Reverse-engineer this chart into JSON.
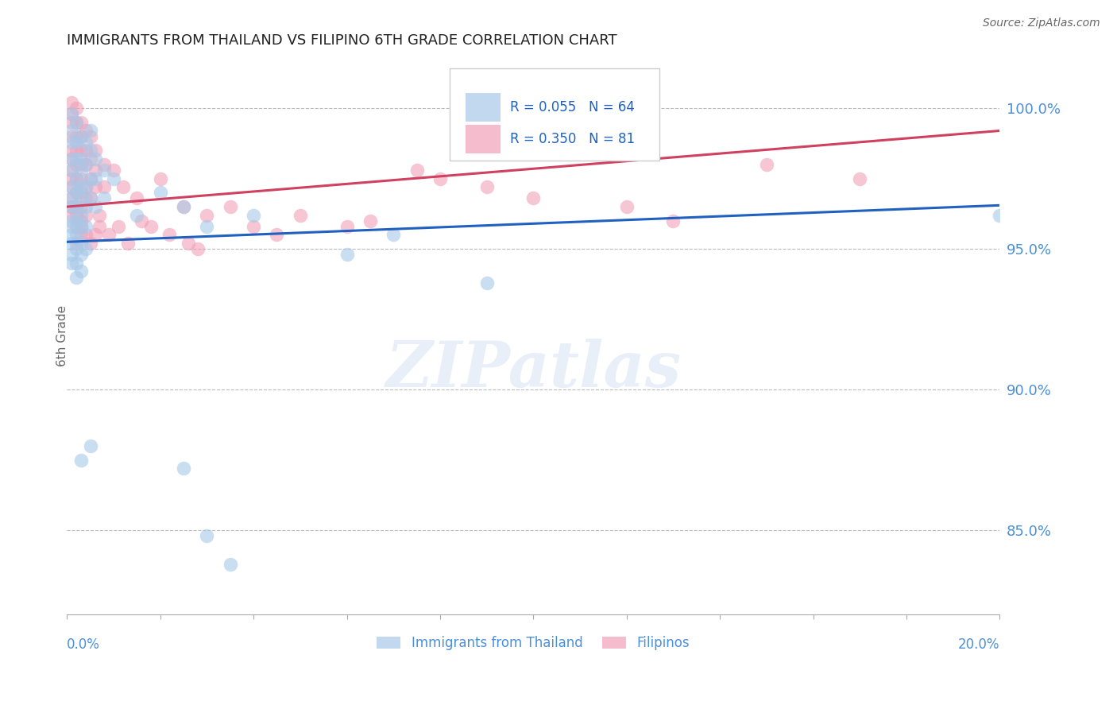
{
  "title": "IMMIGRANTS FROM THAILAND VS FILIPINO 6TH GRADE CORRELATION CHART",
  "source": "Source: ZipAtlas.com",
  "legend_blue_label": "Immigrants from Thailand",
  "legend_pink_label": "Filipinos",
  "R_blue": 0.055,
  "N_blue": 64,
  "R_pink": 0.35,
  "N_pink": 81,
  "blue_color": "#A8C8E8",
  "pink_color": "#F0A0B8",
  "line_blue_color": "#2060C0",
  "line_pink_color": "#D04060",
  "ylabel": "6th Grade",
  "ylabel_right_ticks": [
    100.0,
    95.0,
    90.0,
    85.0
  ],
  "xmin": 0.0,
  "xmax": 0.2,
  "ymin": 82.0,
  "ymax": 101.8,
  "blue_line_y0": 95.25,
  "blue_line_y1": 96.55,
  "pink_line_y0": 96.5,
  "pink_line_y1": 99.2,
  "blue_points": [
    [
      0.001,
      99.8
    ],
    [
      0.001,
      99.2
    ],
    [
      0.001,
      98.8
    ],
    [
      0.001,
      98.2
    ],
    [
      0.001,
      97.8
    ],
    [
      0.001,
      97.2
    ],
    [
      0.001,
      96.8
    ],
    [
      0.001,
      96.5
    ],
    [
      0.001,
      96.0
    ],
    [
      0.001,
      95.8
    ],
    [
      0.001,
      95.5
    ],
    [
      0.001,
      95.2
    ],
    [
      0.001,
      94.8
    ],
    [
      0.001,
      94.5
    ],
    [
      0.002,
      99.5
    ],
    [
      0.002,
      98.8
    ],
    [
      0.002,
      98.2
    ],
    [
      0.002,
      97.5
    ],
    [
      0.002,
      97.0
    ],
    [
      0.002,
      96.5
    ],
    [
      0.002,
      96.0
    ],
    [
      0.002,
      95.5
    ],
    [
      0.002,
      95.0
    ],
    [
      0.002,
      94.5
    ],
    [
      0.002,
      94.0
    ],
    [
      0.003,
      99.0
    ],
    [
      0.003,
      98.2
    ],
    [
      0.003,
      97.8
    ],
    [
      0.003,
      97.2
    ],
    [
      0.003,
      96.8
    ],
    [
      0.003,
      96.2
    ],
    [
      0.003,
      95.8
    ],
    [
      0.003,
      95.2
    ],
    [
      0.003,
      94.8
    ],
    [
      0.003,
      94.2
    ],
    [
      0.004,
      98.8
    ],
    [
      0.004,
      98.0
    ],
    [
      0.004,
      97.2
    ],
    [
      0.004,
      96.5
    ],
    [
      0.004,
      95.8
    ],
    [
      0.004,
      95.0
    ],
    [
      0.005,
      99.2
    ],
    [
      0.005,
      98.5
    ],
    [
      0.005,
      97.5
    ],
    [
      0.005,
      96.8
    ],
    [
      0.006,
      98.2
    ],
    [
      0.006,
      97.5
    ],
    [
      0.006,
      96.5
    ],
    [
      0.008,
      97.8
    ],
    [
      0.008,
      96.8
    ],
    [
      0.01,
      97.5
    ],
    [
      0.015,
      96.2
    ],
    [
      0.02,
      97.0
    ],
    [
      0.025,
      96.5
    ],
    [
      0.03,
      95.8
    ],
    [
      0.04,
      96.2
    ],
    [
      0.06,
      94.8
    ],
    [
      0.07,
      95.5
    ],
    [
      0.09,
      93.8
    ],
    [
      0.003,
      87.5
    ],
    [
      0.005,
      88.0
    ],
    [
      0.025,
      87.2
    ],
    [
      0.03,
      84.8
    ],
    [
      0.035,
      83.8
    ],
    [
      0.2,
      96.2
    ]
  ],
  "pink_points": [
    [
      0.001,
      100.2
    ],
    [
      0.001,
      99.8
    ],
    [
      0.001,
      99.5
    ],
    [
      0.001,
      99.0
    ],
    [
      0.001,
      98.5
    ],
    [
      0.001,
      98.2
    ],
    [
      0.001,
      97.8
    ],
    [
      0.001,
      97.5
    ],
    [
      0.001,
      97.2
    ],
    [
      0.001,
      96.8
    ],
    [
      0.001,
      96.5
    ],
    [
      0.001,
      96.2
    ],
    [
      0.002,
      100.0
    ],
    [
      0.002,
      99.5
    ],
    [
      0.002,
      99.0
    ],
    [
      0.002,
      98.5
    ],
    [
      0.002,
      98.0
    ],
    [
      0.002,
      97.5
    ],
    [
      0.002,
      97.0
    ],
    [
      0.002,
      96.5
    ],
    [
      0.002,
      96.2
    ],
    [
      0.002,
      95.8
    ],
    [
      0.002,
      95.2
    ],
    [
      0.003,
      99.5
    ],
    [
      0.003,
      99.0
    ],
    [
      0.003,
      98.5
    ],
    [
      0.003,
      98.0
    ],
    [
      0.003,
      97.5
    ],
    [
      0.003,
      97.0
    ],
    [
      0.003,
      96.5
    ],
    [
      0.003,
      96.0
    ],
    [
      0.003,
      95.5
    ],
    [
      0.004,
      99.2
    ],
    [
      0.004,
      98.5
    ],
    [
      0.004,
      98.0
    ],
    [
      0.004,
      97.2
    ],
    [
      0.004,
      96.8
    ],
    [
      0.004,
      96.2
    ],
    [
      0.005,
      99.0
    ],
    [
      0.005,
      98.2
    ],
    [
      0.005,
      97.5
    ],
    [
      0.005,
      96.8
    ],
    [
      0.006,
      98.5
    ],
    [
      0.006,
      97.8
    ],
    [
      0.006,
      97.2
    ],
    [
      0.008,
      98.0
    ],
    [
      0.008,
      97.2
    ],
    [
      0.01,
      97.8
    ],
    [
      0.012,
      97.2
    ],
    [
      0.015,
      96.8
    ],
    [
      0.02,
      97.5
    ],
    [
      0.025,
      96.5
    ],
    [
      0.03,
      96.2
    ],
    [
      0.035,
      96.5
    ],
    [
      0.04,
      95.8
    ],
    [
      0.045,
      95.5
    ],
    [
      0.05,
      96.2
    ],
    [
      0.06,
      95.8
    ],
    [
      0.065,
      96.0
    ],
    [
      0.075,
      97.8
    ],
    [
      0.08,
      97.5
    ],
    [
      0.09,
      97.2
    ],
    [
      0.1,
      96.8
    ],
    [
      0.12,
      96.5
    ],
    [
      0.13,
      96.0
    ],
    [
      0.15,
      98.0
    ],
    [
      0.17,
      97.5
    ],
    [
      0.004,
      95.5
    ],
    [
      0.005,
      95.2
    ],
    [
      0.007,
      95.8
    ],
    [
      0.009,
      95.5
    ],
    [
      0.011,
      95.8
    ],
    [
      0.013,
      95.2
    ],
    [
      0.016,
      96.0
    ],
    [
      0.018,
      95.8
    ],
    [
      0.022,
      95.5
    ],
    [
      0.026,
      95.2
    ],
    [
      0.028,
      95.0
    ],
    [
      0.003,
      95.8
    ],
    [
      0.006,
      95.5
    ],
    [
      0.007,
      96.2
    ]
  ]
}
